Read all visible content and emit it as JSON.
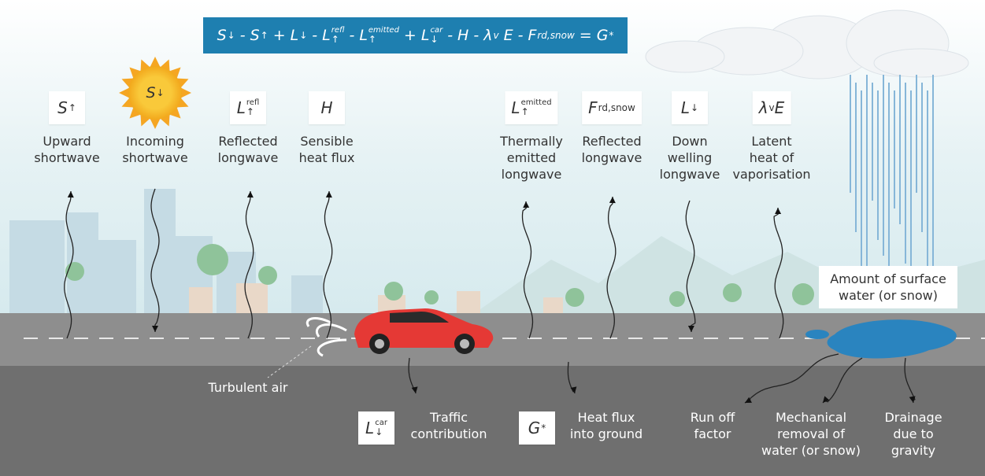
{
  "equation": [
    {
      "base": "S",
      "sub": "↓"
    },
    {
      "op": "-"
    },
    {
      "base": "S",
      "sub": "↑"
    },
    {
      "op": "+"
    },
    {
      "base": "L",
      "sub": "↓"
    },
    {
      "op": "-"
    },
    {
      "base": "L",
      "sub": "↑",
      "sup": "refl"
    },
    {
      "op": "-"
    },
    {
      "base": "L",
      "sub": "↑",
      "sup": "emitted"
    },
    {
      "op": "+"
    },
    {
      "base": "L",
      "sub": "↓",
      "sup": "car"
    },
    {
      "op": "-"
    },
    {
      "base": "H"
    },
    {
      "op": "-"
    },
    {
      "base": "λ",
      "sub": "v"
    },
    {
      "base": "E"
    },
    {
      "op": "-"
    },
    {
      "base": "F",
      "sub": "rd,snow"
    },
    {
      "op": "="
    },
    {
      "base": "G",
      "sub": "*"
    }
  ],
  "top_items": [
    {
      "symbol": {
        "base": "S",
        "sub": "↑"
      },
      "label": [
        "Upward",
        "shortwave"
      ]
    },
    {
      "symbol": {
        "base": "S",
        "sub": "↓"
      },
      "label": [
        "Incoming",
        "shortwave"
      ]
    },
    {
      "symbol": {
        "base": "L",
        "sub": "↑",
        "sup": "refl"
      },
      "label": [
        "Reflected",
        "longwave"
      ]
    },
    {
      "symbol": {
        "base": "H"
      },
      "label": [
        "Sensible",
        "heat flux"
      ]
    },
    {
      "symbol": {
        "base": "L",
        "sub": "↑",
        "sup": "emitted"
      },
      "label": [
        "Thermally",
        "emitted",
        "longwave"
      ]
    },
    {
      "symbol": {
        "base": "F",
        "sub": "rd,snow"
      },
      "label": [
        "Reflected",
        "longwave"
      ]
    },
    {
      "symbol": {
        "base": "L",
        "sub": "↓"
      },
      "label": [
        "Down",
        "welling",
        "longwave"
      ]
    },
    {
      "symbol": {
        "base": "λ",
        "sub": "v",
        "tail": "E"
      },
      "label": [
        "Latent",
        "heat of",
        "vaporisation"
      ]
    }
  ],
  "bottom_items": [
    {
      "symbol": {
        "base": "L",
        "sub": "↓",
        "sup": "car"
      },
      "label": [
        "Traffic",
        "contribution"
      ]
    },
    {
      "symbol": {
        "base": "G",
        "sub": "*"
      },
      "label": [
        "Heat flux",
        "into ground"
      ]
    }
  ],
  "drain_labels": [
    [
      "Run off",
      "factor"
    ],
    [
      "Mechanical",
      "removal of",
      "water (or snow)"
    ],
    [
      "Drainage",
      "due to",
      "gravity"
    ]
  ],
  "surface_water": [
    "Amount of surface",
    "water (or snow)"
  ],
  "turbulent_air": "Turbulent air"
}
